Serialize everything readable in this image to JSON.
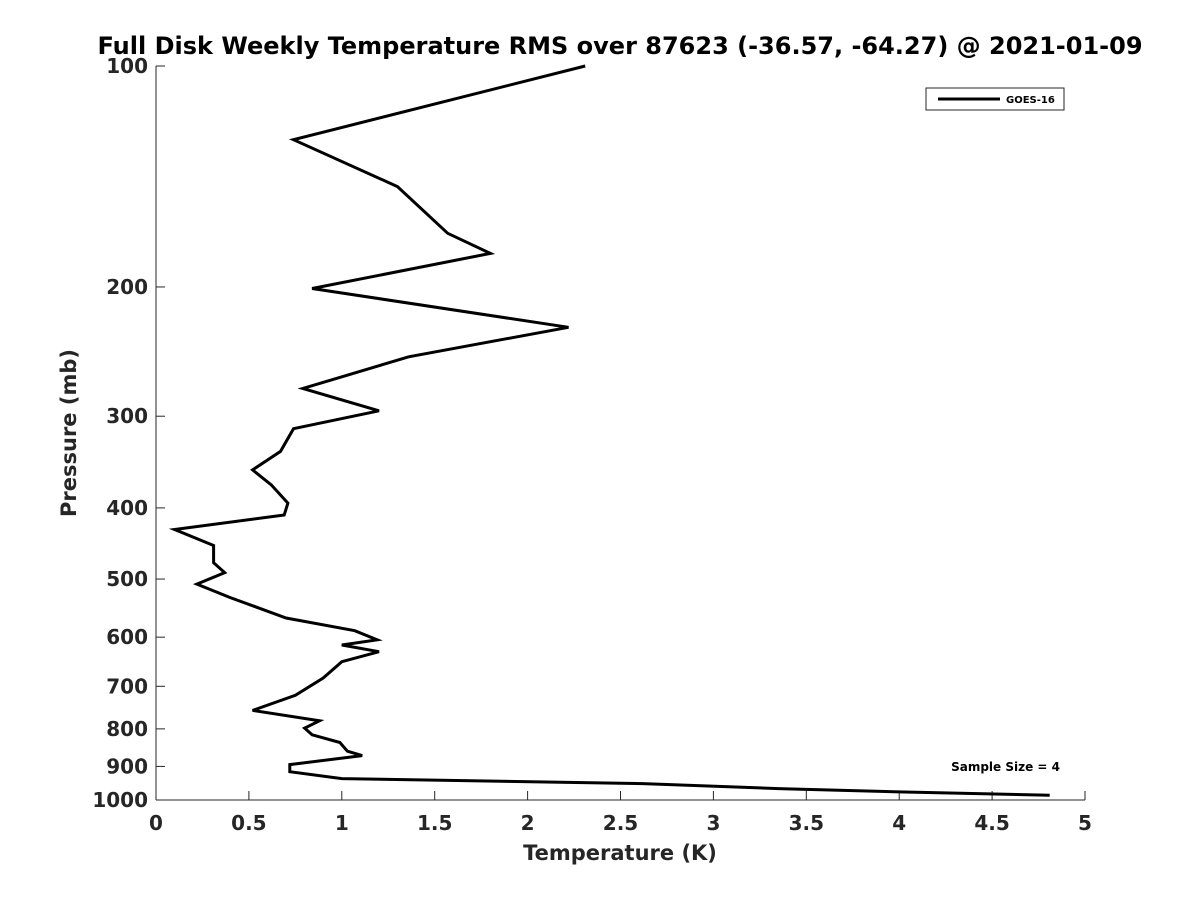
{
  "chart_data": {
    "type": "line",
    "title": "Full Disk Weekly Temperature RMS over 87623 (-36.57, -64.27) @ 2021-01-09",
    "xlabel": "Temperature (K)",
    "ylabel": "Pressure (mb)",
    "xlim": [
      0,
      5
    ],
    "ylim": [
      100,
      1000
    ],
    "y_scale": "log",
    "y_reversed": true,
    "x_ticks": [
      0,
      0.5,
      1,
      1.5,
      2,
      2.5,
      3,
      3.5,
      4,
      4.5,
      5
    ],
    "x_tick_labels": [
      "0",
      "0.5",
      "1",
      "1.5",
      "2",
      "2.5",
      "3",
      "3.5",
      "4",
      "4.5",
      "5"
    ],
    "y_ticks": [
      100,
      200,
      300,
      400,
      500,
      600,
      700,
      800,
      900,
      1000
    ],
    "y_tick_labels": [
      "100",
      "200",
      "300",
      "400",
      "500",
      "600",
      "700",
      "800",
      "900",
      "1000"
    ],
    "grid": false,
    "legend_position": "top-right",
    "annotation": "Sample Size = 4",
    "series": [
      {
        "name": "GOES-16",
        "color": "#000000",
        "x": [
          2.31,
          0.74,
          1.3,
          1.57,
          1.8,
          0.84,
          2.22,
          1.36,
          0.79,
          1.2,
          0.74,
          0.67,
          0.52,
          0.62,
          0.71,
          0.69,
          0.1,
          0.31,
          0.31,
          0.37,
          0.22,
          0.4,
          0.7,
          1.07,
          1.19,
          1.0,
          1.2,
          1.0,
          0.9,
          0.75,
          0.52,
          0.88,
          0.8,
          0.84,
          0.99,
          1.03,
          1.11,
          0.72,
          0.72,
          1.0,
          2.62,
          3.35,
          4.0,
          4.81
        ],
        "y": [
          100,
          126,
          146,
          169,
          180,
          201,
          227,
          249,
          275,
          295,
          312,
          335,
          355,
          372,
          394,
          409,
          428,
          450,
          475,
          490,
          508,
          530,
          565,
          588,
          605,
          615,
          628,
          648,
          682,
          720,
          755,
          780,
          798,
          815,
          835,
          858,
          870,
          895,
          915,
          935,
          950,
          965,
          975,
          985
        ]
      }
    ]
  }
}
